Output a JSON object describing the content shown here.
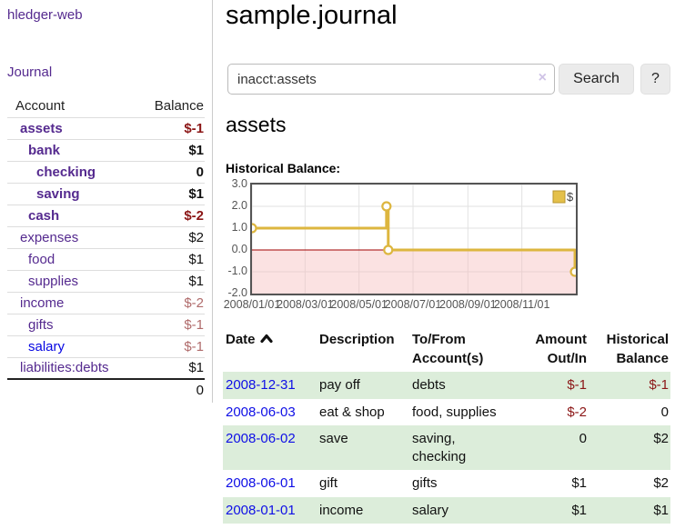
{
  "app": {
    "title": "hledger-web",
    "nav_journal": "Journal"
  },
  "sidebar": {
    "columns": {
      "account": "Account",
      "balance": "Balance"
    },
    "accounts": [
      {
        "name": "assets",
        "level": 1,
        "bold": true,
        "link": "purple",
        "balance": "$-1",
        "balance_class": "neg-bold"
      },
      {
        "name": "bank",
        "level": 2,
        "bold": true,
        "link": "purple",
        "balance": "$1",
        "balance_class": "pos-bold"
      },
      {
        "name": "checking",
        "level": 3,
        "bold": true,
        "link": "purple",
        "balance": "0",
        "balance_class": "pos-bold"
      },
      {
        "name": "saving",
        "level": 3,
        "bold": true,
        "link": "purple",
        "balance": "$1",
        "balance_class": "pos-bold"
      },
      {
        "name": "cash",
        "level": 2,
        "bold": true,
        "link": "purple",
        "balance": "$-2",
        "balance_class": "neg-bold"
      },
      {
        "name": "expenses",
        "level": 1,
        "bold": false,
        "link": "purple",
        "balance": "$2",
        "balance_class": "pos"
      },
      {
        "name": "food",
        "level": 2,
        "bold": false,
        "link": "purple",
        "balance": "$1",
        "balance_class": "pos"
      },
      {
        "name": "supplies",
        "level": 2,
        "bold": false,
        "link": "purple",
        "balance": "$1",
        "balance_class": "pos"
      },
      {
        "name": "income",
        "level": 1,
        "bold": false,
        "link": "purple",
        "balance": "$-2",
        "balance_class": "neg-soft"
      },
      {
        "name": "gifts",
        "level": 2,
        "bold": false,
        "link": "purple",
        "balance": "$-1",
        "balance_class": "neg-soft"
      },
      {
        "name": "salary",
        "level": 2,
        "bold": false,
        "link": "blue",
        "balance": "$-1",
        "balance_class": "neg-soft"
      },
      {
        "name": "liabilities:debts",
        "level": 1,
        "bold": false,
        "link": "purple",
        "balance": "$1",
        "balance_class": "pos"
      }
    ],
    "total": "0"
  },
  "header": {
    "title": "sample.journal"
  },
  "search": {
    "value": "inacct:assets",
    "clear_icon": "×",
    "button": "Search",
    "help_button": "?"
  },
  "account_page": {
    "title": "assets",
    "chart_label": "Historical Balance:"
  },
  "chart_data": {
    "type": "line",
    "style": "step",
    "title": "Historical Balance",
    "series": [
      {
        "name": "$",
        "points": [
          [
            "2008-01-01",
            1
          ],
          [
            "2008-06-01",
            2
          ],
          [
            "2008-06-03",
            0
          ],
          [
            "2008-12-31",
            -1
          ]
        ]
      }
    ],
    "xrange": [
      "2008-01-01",
      "2009-01-01"
    ],
    "ylim": [
      -2.0,
      3.0
    ],
    "yticks": [
      3.0,
      2.0,
      1.0,
      0.0,
      -1.0,
      -2.0
    ],
    "xticks": [
      "2008/01/01",
      "2008/03/01",
      "2008/05/01",
      "2008/07/01",
      "2008/09/01",
      "2008/11/01"
    ],
    "legend": [
      {
        "label": "$",
        "color": "#e4c04a"
      }
    ],
    "legend_position": "top-right",
    "grid": true,
    "colors": {
      "line": "#ddb63f",
      "marker_fill": "#ffffff",
      "negative_region": "#f6b9b9",
      "zero_line": "#a00000",
      "gridline": "#e2e2e2",
      "border": "#545454"
    }
  },
  "register": {
    "headers": {
      "date": "Date",
      "description": "Description",
      "accounts": "To/From Account(s)",
      "amount": "Amount Out/In",
      "balance": "Historical Balance"
    },
    "rows": [
      {
        "date": "2008-12-31",
        "description": "pay off",
        "accounts": "debts",
        "amount": "$-1",
        "amount_class": "neg",
        "balance": "$-1",
        "balance_class": "neg",
        "striped": true
      },
      {
        "date": "2008-06-03",
        "description": "eat & shop",
        "accounts": "food, supplies",
        "amount": "$-2",
        "amount_class": "neg",
        "balance": "0",
        "balance_class": "pos",
        "striped": false
      },
      {
        "date": "2008-06-02",
        "description": "save",
        "accounts": "saving, checking",
        "amount": "0",
        "amount_class": "pos",
        "balance": "$2",
        "balance_class": "pos",
        "striped": true
      },
      {
        "date": "2008-06-01",
        "description": "gift",
        "accounts": "gifts",
        "amount": "$1",
        "amount_class": "pos",
        "balance": "$2",
        "balance_class": "pos",
        "striped": false
      },
      {
        "date": "2008-01-01",
        "description": "income",
        "accounts": "salary",
        "amount": "$1",
        "amount_class": "pos",
        "balance": "$1",
        "balance_class": "pos",
        "striped": true
      }
    ]
  }
}
